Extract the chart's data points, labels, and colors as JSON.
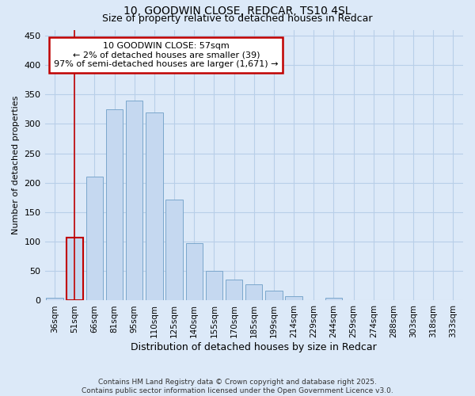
{
  "title": "10, GOODWIN CLOSE, REDCAR, TS10 4SL",
  "subtitle": "Size of property relative to detached houses in Redcar",
  "xlabel": "Distribution of detached houses by size in Redcar",
  "ylabel": "Number of detached properties",
  "categories": [
    "36sqm",
    "51sqm",
    "66sqm",
    "81sqm",
    "95sqm",
    "110sqm",
    "125sqm",
    "140sqm",
    "155sqm",
    "170sqm",
    "185sqm",
    "199sqm",
    "214sqm",
    "229sqm",
    "244sqm",
    "259sqm",
    "274sqm",
    "288sqm",
    "303sqm",
    "318sqm",
    "333sqm"
  ],
  "values": [
    5,
    107,
    211,
    325,
    340,
    320,
    172,
    98,
    50,
    35,
    28,
    17,
    8,
    0,
    5,
    0,
    0,
    0,
    0,
    0,
    0
  ],
  "bar_color": "#c5d8f0",
  "bar_edge_color": "#7ba7cc",
  "highlight_bar_index": 1,
  "highlight_color": "#c00000",
  "annotation_title": "10 GOODWIN CLOSE: 57sqm",
  "annotation_line1": "← 2% of detached houses are smaller (39)",
  "annotation_line2": "97% of semi-detached houses are larger (1,671) →",
  "annotation_box_color": "#ffffff",
  "annotation_border_color": "#c00000",
  "ylim": [
    0,
    460
  ],
  "yticks": [
    0,
    50,
    100,
    150,
    200,
    250,
    300,
    350,
    400,
    450
  ],
  "footer_line1": "Contains HM Land Registry data © Crown copyright and database right 2025.",
  "footer_line2": "Contains public sector information licensed under the Open Government Licence v3.0.",
  "bg_color": "#dce9f8",
  "plot_bg_color": "#dce9f8",
  "grid_color": "#b8cfe8",
  "title_fontsize": 10,
  "subtitle_fontsize": 9
}
